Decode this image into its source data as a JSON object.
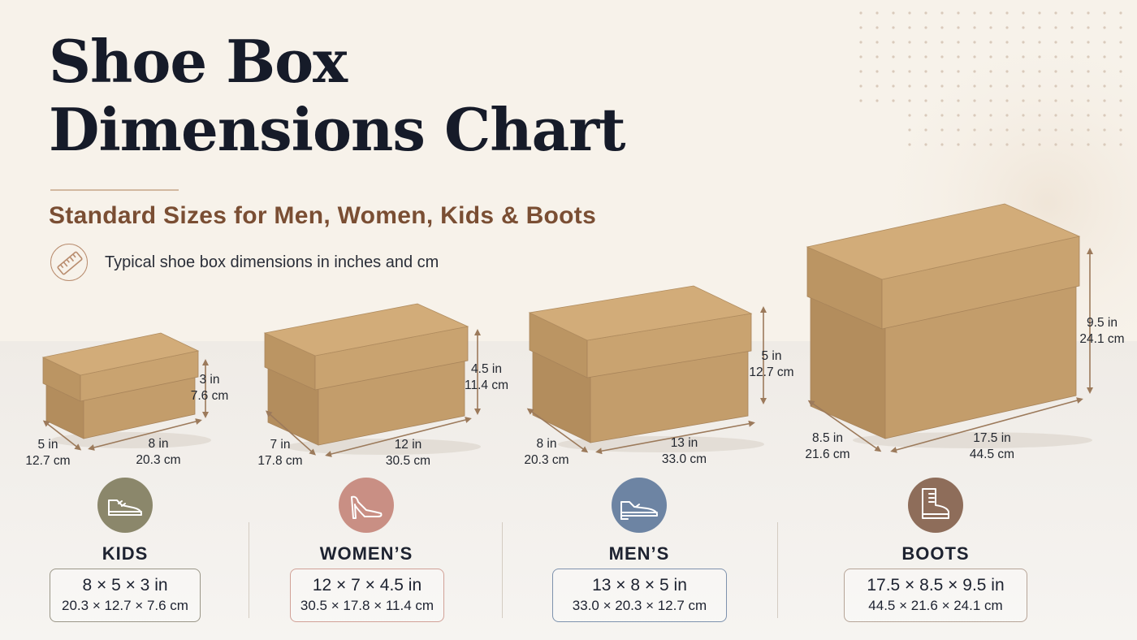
{
  "header": {
    "title_line1": "Shoe Box",
    "title_line2": "Dimensions Chart",
    "subtitle": "Standard Sizes for Men, Women, Kids & Boots",
    "note": "Typical shoe box dimensions in inches and cm",
    "note_icon": "ruler-icon"
  },
  "colors": {
    "title": "#161b29",
    "subtitle": "#7a4e33",
    "cardboard_front": "#c39d6b",
    "cardboard_side": "#b38d5d",
    "cardboard_lid_top": "#d2ac79"
  },
  "boxes": [
    {
      "category": "KIDS",
      "icon": "sneaker-icon",
      "accent": "#8b876b",
      "length_in": "8 in",
      "length_cm": "20.3 cm",
      "width_in": "5 in",
      "width_cm": "12.7 cm",
      "height_in": "3 in",
      "height_cm": "7.6 cm",
      "size_in": "8 × 5 × 3 in",
      "size_cm": "20.3 × 12.7 × 7.6 cm"
    },
    {
      "category": "WOMEN’S",
      "icon": "high-heel-icon",
      "accent": "#c98f84",
      "length_in": "12 in",
      "length_cm": "30.5 cm",
      "width_in": "7 in",
      "width_cm": "17.8 cm",
      "height_in": "4.5 in",
      "height_cm": "11.4 cm",
      "size_in": "12 × 7 × 4.5 in",
      "size_cm": "30.5 × 17.8 × 11.4 cm"
    },
    {
      "category": "MEN’S",
      "icon": "dress-shoe-icon",
      "accent": "#6d84a3",
      "length_in": "13 in",
      "length_cm": "33.0 cm",
      "width_in": "8 in",
      "width_cm": "20.3 cm",
      "height_in": "5 in",
      "height_cm": "12.7 cm",
      "size_in": "13 × 8 × 5 in",
      "size_cm": "33.0 × 20.3 × 12.7 cm"
    },
    {
      "category": "BOOTS",
      "icon": "boot-icon",
      "accent": "#8e6d5a",
      "length_in": "17.5 in",
      "length_cm": "44.5 cm",
      "width_in": "8.5 in",
      "width_cm": "21.6 cm",
      "height_in": "9.5 in",
      "height_cm": "24.1 cm",
      "size_in": "17.5 × 8.5 × 9.5 in",
      "size_cm": "44.5 × 21.6 × 24.1 cm"
    }
  ]
}
